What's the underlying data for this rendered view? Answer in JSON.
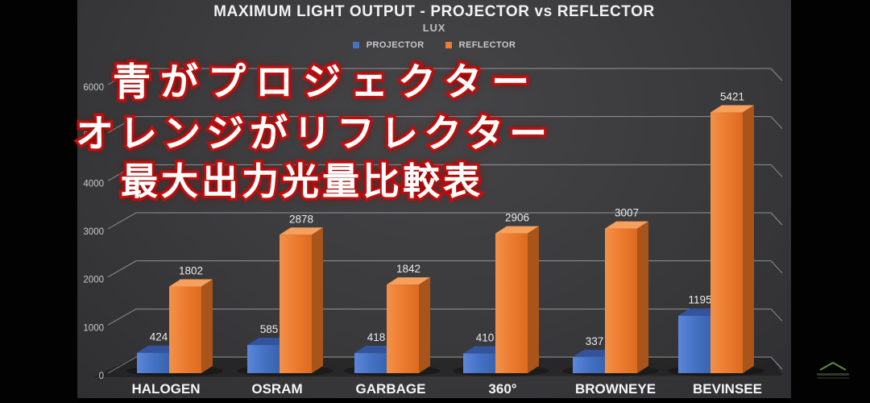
{
  "chart_data": {
    "type": "bar",
    "style": "3d-clustered-column",
    "title": "MAXIMUM LIGHT OUTPUT - PROJECTOR vs REFLECTOR",
    "subtitle": "LUX",
    "categories": [
      "HALOGEN",
      "OSRAM",
      "GARBAGE",
      "360°",
      "BROWNEYE",
      "BEVINSEE"
    ],
    "series": [
      {
        "name": "PROJECTOR",
        "color": "#4472c4",
        "values": [
          424,
          585,
          418,
          410,
          337,
          1195
        ]
      },
      {
        "name": "REFLECTOR",
        "color": "#ed7d31",
        "values": [
          1802,
          2878,
          1842,
          2906,
          3007,
          5421
        ]
      }
    ],
    "ylim": [
      0,
      6000
    ],
    "yticks": [
      0,
      1000,
      2000,
      3000,
      4000,
      5000,
      6000
    ],
    "xlabel": "",
    "ylabel": "",
    "grid": true,
    "legend_position": "top",
    "data_labels": true
  },
  "overlay": {
    "lines": [
      "青がプロジェクター",
      "オレンジがリフレクター",
      "最大出力光量比較表"
    ],
    "text_color": "#ffffff",
    "outline_color": "#c41212"
  },
  "colors": {
    "background": "#3a3a3c",
    "letterbox": "#020202",
    "gridline": "rgba(255,255,255,0.45)",
    "title_text": "#f2f2f2",
    "axis_text": "#c9c9c9",
    "category_text": "#f5f5f5",
    "value_label_text": "#ececec",
    "watermark_green": "#5a8f3c"
  },
  "watermark": {
    "icon": "green-mountain-chevron"
  }
}
